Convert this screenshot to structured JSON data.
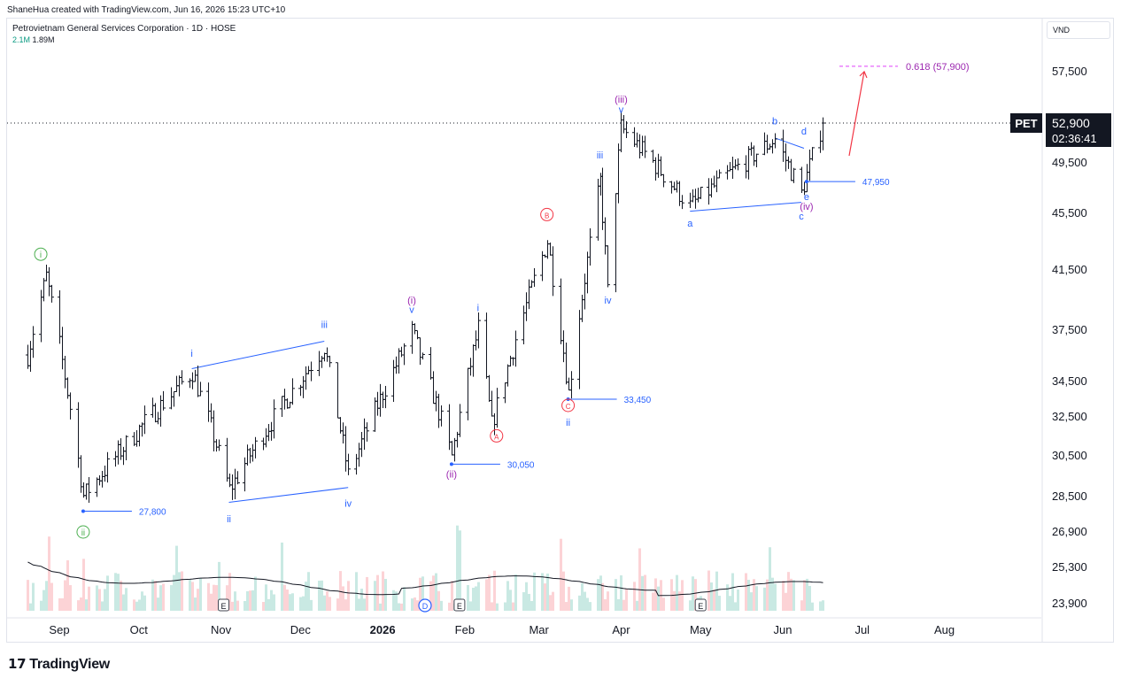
{
  "header": {
    "credit": "ShaneHua created with TradingView.com, Jun 16, 2026 15:23 UTC+10"
  },
  "symbol": {
    "title": "Petrovietnam General Services Corporation · 1D · HOSE",
    "vol_a": "2.1M",
    "vol_b": "1.89M",
    "currency": "VND",
    "ticker": "PET",
    "last_price": "52,900",
    "countdown": "02:36:41"
  },
  "brand": {
    "logo_text": "TradingView"
  },
  "colors": {
    "wave_blue": "#2962ff",
    "wave_purple": "#9c27b0",
    "wave_green": "#4caf50",
    "wave_red": "#f23645",
    "candle": "#131722",
    "target_pink": "#e040fb"
  },
  "chart_data": {
    "type": "candlestick",
    "ylim": [
      23000,
      61000
    ],
    "y_ticks": [
      "57,500",
      "52,900",
      "49,500",
      "45,500",
      "41,500",
      "37,500",
      "34,500",
      "32,500",
      "30,500",
      "28,500",
      "26,900",
      "25,300",
      "23,900"
    ],
    "x_ticks": [
      "Sep",
      "Oct",
      "Nov",
      "Dec",
      "2026",
      "Feb",
      "Mar",
      "Apr",
      "May",
      "Jun",
      "Jul",
      "Aug"
    ],
    "date_range": [
      "2025-08-20",
      "2026-06-16"
    ],
    "anchors": [
      {
        "date": "2025-08-20",
        "close": 36000
      },
      {
        "date": "2025-08-27",
        "close": 41000
      },
      {
        "date": "2025-09-10",
        "close": 28500
      },
      {
        "date": "2025-10-21",
        "close": 35000
      },
      {
        "date": "2025-11-04",
        "close": 28800
      },
      {
        "date": "2025-12-10",
        "close": 36500
      },
      {
        "date": "2025-12-19",
        "close": 29500
      },
      {
        "date": "2026-01-12",
        "close": 37400
      },
      {
        "date": "2026-01-27",
        "close": 30400
      },
      {
        "date": "2026-02-06",
        "close": 37600
      },
      {
        "date": "2026-02-11",
        "close": 32000
      },
      {
        "date": "2026-03-04",
        "close": 43500
      },
      {
        "date": "2026-03-12",
        "close": 33800
      },
      {
        "date": "2026-03-24",
        "close": 48000
      },
      {
        "date": "2026-03-27",
        "close": 40000
      },
      {
        "date": "2026-04-01",
        "close": 52500
      },
      {
        "date": "2026-04-27",
        "close": 46000
      },
      {
        "date": "2026-05-29",
        "close": 51500
      },
      {
        "date": "2026-06-08",
        "close": 47000
      },
      {
        "date": "2026-06-16",
        "close": 52900
      }
    ],
    "price_labels": [
      {
        "text": "27,800",
        "price": 27800,
        "date": "2025-09-10"
      },
      {
        "text": "30,050",
        "price": 30050,
        "date": "2026-01-27"
      },
      {
        "text": "33,450",
        "price": 33450,
        "date": "2026-03-12"
      },
      {
        "text": "47,950",
        "price": 47950,
        "date": "2026-06-10"
      }
    ],
    "target": {
      "text": "0.618 (57,900)",
      "price": 57900
    },
    "wave_labels": [
      {
        "text": "i",
        "color": "green",
        "circled": true,
        "date": "2025-08-25",
        "price": 42300
      },
      {
        "text": "ii",
        "color": "green",
        "circled": true,
        "date": "2025-09-10",
        "price": 26700
      },
      {
        "text": "i",
        "color": "blue",
        "date": "2025-10-21",
        "price": 35900
      },
      {
        "text": "ii",
        "color": "blue",
        "date": "2025-11-04",
        "price": 27300
      },
      {
        "text": "iii",
        "color": "blue",
        "date": "2025-12-10",
        "price": 37600
      },
      {
        "text": "iv",
        "color": "blue",
        "date": "2025-12-19",
        "price": 28000
      },
      {
        "text": "(i)",
        "color": "purple",
        "date": "2026-01-12",
        "price": 39200
      },
      {
        "text": "v",
        "color": "blue",
        "date": "2026-01-12",
        "price": 38600
      },
      {
        "text": "(ii)",
        "color": "purple",
        "date": "2026-01-27",
        "price": 29400
      },
      {
        "text": "i",
        "color": "blue",
        "date": "2026-02-06",
        "price": 38700
      },
      {
        "text": "A",
        "color": "red",
        "circled": true,
        "date": "2026-02-13",
        "price": 31300
      },
      {
        "text": "B",
        "color": "red",
        "circled": true,
        "date": "2026-03-04",
        "price": 45100
      },
      {
        "text": "C",
        "color": "red",
        "circled": true,
        "date": "2026-03-12",
        "price": 32900
      },
      {
        "text": "ii",
        "color": "blue",
        "date": "2026-03-12",
        "price": 32000
      },
      {
        "text": "iii",
        "color": "blue",
        "date": "2026-03-24",
        "price": 49800
      },
      {
        "text": "iv",
        "color": "blue",
        "date": "2026-03-27",
        "price": 39200
      },
      {
        "text": "(iii)",
        "color": "purple",
        "date": "2026-04-01",
        "price": 54700
      },
      {
        "text": "v",
        "color": "blue",
        "date": "2026-04-01",
        "price": 53800
      },
      {
        "text": "a",
        "color": "blue",
        "date": "2026-04-27",
        "price": 44500
      },
      {
        "text": "b",
        "color": "blue",
        "date": "2026-05-29",
        "price": 52800
      },
      {
        "text": "c",
        "color": "blue",
        "date": "2026-06-08",
        "price": 45000
      },
      {
        "text": "d",
        "color": "blue",
        "date": "2026-06-09",
        "price": 51900
      },
      {
        "text": "e",
        "color": "blue",
        "date": "2026-06-10",
        "price": 46500
      },
      {
        "text": "(iv)",
        "color": "purple",
        "date": "2026-06-10",
        "price": 45700
      }
    ],
    "events": [
      {
        "text": "E",
        "date": "2025-11-02",
        "kind": "earnings"
      },
      {
        "text": "D",
        "date": "2026-01-17",
        "kind": "dividend"
      },
      {
        "text": "E",
        "date": "2026-01-30",
        "kind": "earnings"
      },
      {
        "text": "E",
        "date": "2026-05-01",
        "kind": "earnings"
      }
    ]
  }
}
